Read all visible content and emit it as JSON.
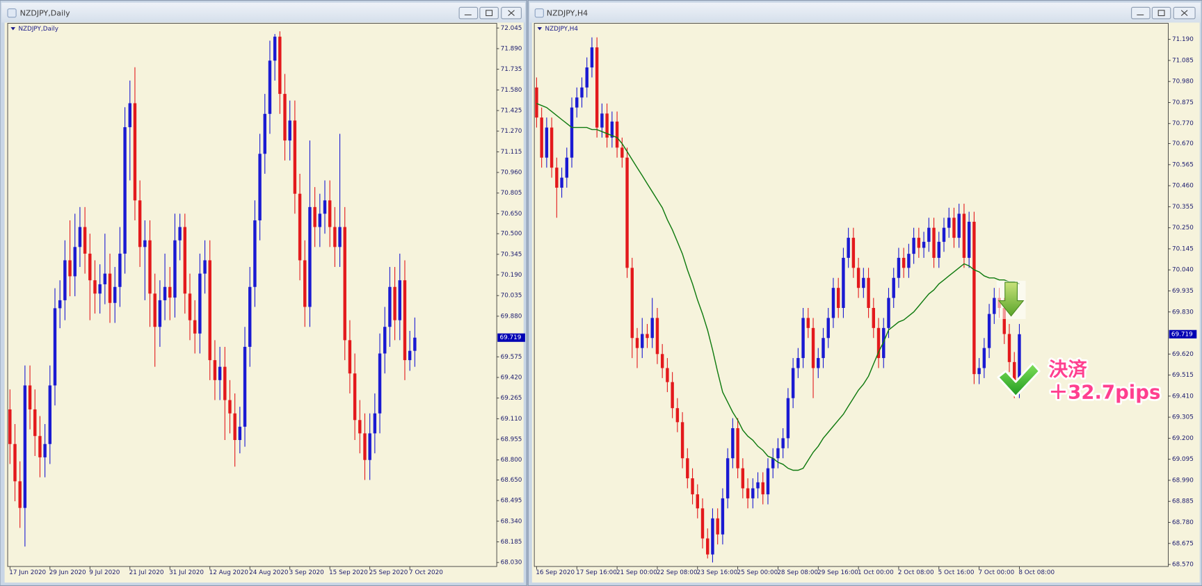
{
  "chart_data": [
    {
      "type": "candlestick",
      "title": "NZDJPY,Daily",
      "up_color": "#1a1ad2",
      "down_color": "#e3191c",
      "categories": [
        "17 Jun 2020",
        null,
        null,
        null,
        null,
        null,
        null,
        null,
        "29 Jun 2020",
        null,
        null,
        null,
        null,
        null,
        null,
        null,
        "9 Jul 2020",
        null,
        null,
        null,
        null,
        null,
        null,
        null,
        "21 Jul 2020",
        null,
        null,
        null,
        null,
        null,
        null,
        null,
        "31 Jul 2020",
        null,
        null,
        null,
        null,
        null,
        null,
        null,
        "12 Aug 2020",
        null,
        null,
        null,
        null,
        null,
        null,
        null,
        "24 Aug 2020",
        null,
        null,
        null,
        null,
        null,
        null,
        null,
        "3 Sep 2020",
        null,
        null,
        null,
        null,
        null,
        null,
        null,
        "15 Sep 2020",
        null,
        null,
        null,
        null,
        null,
        null,
        null,
        "25 Sep 2020",
        null,
        null,
        null,
        null,
        null,
        null,
        null,
        "7 Oct 2020",
        null
      ],
      "open": [
        69.18,
        68.92,
        68.64,
        68.44,
        69.36,
        69.18,
        68.98,
        68.82,
        68.92,
        69.36,
        69.94,
        70.0,
        70.3,
        70.18,
        70.4,
        70.55,
        70.35,
        70.15,
        70.05,
        70.12,
        70.2,
        69.98,
        70.1,
        70.35,
        71.3,
        71.48,
        70.75,
        70.4,
        70.45,
        70.05,
        69.8,
        70.0,
        70.1,
        70.02,
        70.45,
        70.55,
        70.05,
        69.85,
        69.75,
        70.2,
        70.3,
        69.55,
        69.4,
        69.5,
        69.25,
        69.15,
        68.95,
        69.05,
        69.65,
        70.1,
        70.6,
        71.1,
        71.4,
        71.8,
        71.98,
        71.55,
        71.2,
        71.35,
        70.8,
        70.3,
        69.95,
        70.7,
        70.55,
        70.65,
        70.75,
        70.55,
        70.4,
        70.55,
        69.7,
        69.45,
        69.1,
        69.0,
        68.8,
        69.0,
        69.15,
        69.6,
        69.8,
        70.1,
        69.85,
        70.15,
        69.55,
        69.62
      ],
      "high": [
        69.33,
        69.07,
        68.79,
        69.51,
        69.51,
        69.33,
        69.13,
        69.07,
        69.51,
        70.09,
        70.15,
        70.45,
        70.6,
        70.65,
        70.7,
        70.7,
        70.5,
        70.3,
        70.27,
        70.5,
        70.35,
        70.25,
        70.55,
        71.45,
        71.65,
        71.75,
        70.9,
        70.6,
        70.6,
        70.2,
        70.15,
        70.35,
        70.25,
        70.65,
        70.65,
        70.65,
        70.2,
        70.0,
        70.35,
        70.45,
        70.45,
        69.7,
        69.65,
        69.65,
        69.4,
        69.3,
        69.2,
        69.8,
        70.25,
        70.75,
        71.25,
        71.55,
        71.95,
        72.0,
        72.02,
        71.7,
        71.5,
        71.5,
        70.95,
        70.45,
        71.2,
        70.85,
        70.8,
        70.9,
        70.9,
        70.7,
        71.25,
        70.7,
        69.85,
        69.6,
        69.25,
        69.15,
        69.15,
        69.3,
        69.75,
        69.95,
        70.25,
        70.25,
        70.35,
        70.3,
        69.77,
        69.87
      ],
      "low": [
        68.77,
        68.49,
        68.29,
        68.15,
        69.03,
        68.83,
        68.67,
        68.67,
        68.77,
        69.21,
        69.79,
        69.85,
        70.03,
        70.03,
        70.25,
        70.2,
        69.85,
        69.9,
        69.9,
        69.97,
        69.83,
        69.83,
        69.95,
        70.2,
        70.9,
        70.6,
        70.25,
        70.0,
        69.8,
        69.5,
        69.65,
        69.85,
        69.85,
        69.87,
        70.3,
        69.9,
        69.7,
        69.6,
        69.6,
        70.05,
        69.4,
        69.25,
        69.25,
        68.95,
        69.0,
        68.75,
        68.85,
        68.9,
        69.5,
        69.95,
        70.45,
        70.95,
        71.25,
        71.65,
        71.4,
        71.05,
        71.05,
        70.65,
        70.15,
        69.8,
        69.8,
        70.4,
        70.4,
        70.5,
        70.4,
        70.25,
        70.25,
        69.55,
        69.3,
        68.95,
        68.85,
        68.65,
        68.65,
        68.85,
        69.0,
        69.45,
        69.65,
        69.7,
        69.7,
        69.4,
        69.47,
        69.5
      ],
      "close": [
        68.92,
        68.64,
        68.44,
        69.36,
        69.18,
        68.98,
        68.82,
        68.92,
        69.36,
        69.94,
        70.0,
        70.3,
        70.18,
        70.4,
        70.55,
        70.35,
        70.15,
        70.05,
        70.12,
        70.2,
        69.98,
        70.1,
        70.35,
        71.3,
        71.48,
        70.75,
        70.4,
        70.45,
        70.05,
        69.8,
        70.0,
        70.1,
        70.02,
        70.45,
        70.55,
        70.05,
        69.85,
        69.75,
        70.2,
        70.3,
        69.55,
        69.4,
        69.5,
        69.25,
        69.15,
        68.95,
        69.05,
        69.65,
        70.1,
        70.6,
        71.1,
        71.4,
        71.8,
        71.98,
        71.55,
        71.2,
        71.35,
        70.8,
        70.3,
        69.95,
        70.7,
        70.55,
        70.65,
        70.75,
        70.55,
        70.4,
        70.55,
        69.7,
        69.45,
        69.1,
        69.0,
        68.8,
        69.0,
        69.15,
        69.6,
        69.8,
        70.1,
        69.85,
        70.15,
        69.55,
        69.62,
        69.719
      ],
      "ylim": [
        68.0,
        72.08
      ],
      "yticks": [
        72.045,
        {
          "value": 71.89,
          "label": "71.890"
        },
        71.735,
        {
          "value": 71.58,
          "label": "71.580"
        },
        71.425,
        {
          "value": 71.27,
          "label": "71.270"
        },
        71.115,
        {
          "value": 70.96,
          "label": "70.960"
        },
        70.805,
        {
          "value": 70.65,
          "label": "70.650"
        },
        {
          "value": 70.5,
          "label": "70.500"
        },
        70.345,
        {
          "value": 70.19,
          "label": "70.190"
        },
        70.035,
        {
          "value": 69.88,
          "label": "69.880"
        },
        69.575,
        {
          "value": 69.42,
          "label": "69.420"
        },
        69.265,
        {
          "value": 69.11,
          "label": "69.110"
        },
        68.955,
        {
          "value": 68.8,
          "label": "68.800"
        },
        {
          "value": 68.65,
          "label": "68.650"
        },
        68.495,
        {
          "value": 68.34,
          "label": "68.340"
        },
        68.185,
        {
          "value": 68.03,
          "label": "68.030"
        }
      ]
    },
    {
      "type": "candlestick",
      "title": "NZDJPY,H4",
      "up_color": "#1a1ad2",
      "down_color": "#e3191c",
      "categories": [
        "16 Sep 2020",
        null,
        null,
        null,
        null,
        null,
        null,
        null,
        "17 Sep 16:00",
        null,
        null,
        null,
        null,
        null,
        null,
        null,
        "21 Sep 00:00",
        null,
        null,
        null,
        null,
        null,
        null,
        null,
        "22 Sep 08:00",
        null,
        null,
        null,
        null,
        null,
        null,
        null,
        "23 Sep 16:00",
        null,
        null,
        null,
        null,
        null,
        null,
        null,
        "25 Sep 00:00",
        null,
        null,
        null,
        null,
        null,
        null,
        null,
        "28 Sep 08:00",
        null,
        null,
        null,
        null,
        null,
        null,
        null,
        "29 Sep 16:00",
        null,
        null,
        null,
        null,
        null,
        null,
        null,
        "1 Oct 00:00",
        null,
        null,
        null,
        null,
        null,
        null,
        null,
        "2 Oct 08:00",
        null,
        null,
        null,
        null,
        null,
        null,
        null,
        "5 Oct 16:00",
        null,
        null,
        null,
        null,
        null,
        null,
        null,
        "7 Oct 00:00",
        null,
        null,
        null,
        null,
        null,
        null,
        null,
        "8 Oct 08:00"
      ],
      "open": [
        70.95,
        70.8,
        70.6,
        70.75,
        70.55,
        70.45,
        70.5,
        70.6,
        70.85,
        70.9,
        70.95,
        71.05,
        71.15,
        70.75,
        70.82,
        70.7,
        70.78,
        70.65,
        70.6,
        70.05,
        69.7,
        69.65,
        69.72,
        69.7,
        69.8,
        69.62,
        69.55,
        69.48,
        69.35,
        69.28,
        69.1,
        69.0,
        68.92,
        68.85,
        68.7,
        68.62,
        68.8,
        68.72,
        68.9,
        69.1,
        69.25,
        69.05,
        68.95,
        68.9,
        68.95,
        68.98,
        68.92,
        69.05,
        69.1,
        69.15,
        69.2,
        69.4,
        69.55,
        69.6,
        69.8,
        69.75,
        69.55,
        69.6,
        69.7,
        69.8,
        69.95,
        69.85,
        70.1,
        70.2,
        70.05,
        69.95,
        70.0,
        69.85,
        69.75,
        69.6,
        69.75,
        69.9,
        70.0,
        70.1,
        70.05,
        70.12,
        70.2,
        70.15,
        70.18,
        70.25,
        70.1,
        70.18,
        70.25,
        70.3,
        70.2,
        70.32,
        70.1,
        70.28,
        69.52,
        69.55,
        69.65,
        69.82,
        69.9,
        69.85,
        69.72,
        69.58,
        69.45
      ],
      "high": [
        71.0,
        70.85,
        70.8,
        70.8,
        70.6,
        70.55,
        70.65,
        70.9,
        70.95,
        71.0,
        71.1,
        71.2,
        71.2,
        70.87,
        70.87,
        70.83,
        70.83,
        70.7,
        70.65,
        70.1,
        69.75,
        69.8,
        69.77,
        69.9,
        69.85,
        69.67,
        69.6,
        69.53,
        69.4,
        69.33,
        69.15,
        69.05,
        68.97,
        68.9,
        68.75,
        68.85,
        68.85,
        68.95,
        69.15,
        69.3,
        69.3,
        69.1,
        69.0,
        69.0,
        69.03,
        69.03,
        69.1,
        69.15,
        69.2,
        69.25,
        69.45,
        69.6,
        69.65,
        69.85,
        69.85,
        69.8,
        69.65,
        69.75,
        69.85,
        70.0,
        70.0,
        70.15,
        70.25,
        70.25,
        70.1,
        70.05,
        70.05,
        69.9,
        69.8,
        69.8,
        69.95,
        70.05,
        70.15,
        70.15,
        70.17,
        70.25,
        70.25,
        70.23,
        70.3,
        70.3,
        70.23,
        70.3,
        70.35,
        70.35,
        70.37,
        70.37,
        70.33,
        70.33,
        69.6,
        69.7,
        69.87,
        69.95,
        69.95,
        69.9,
        69.77,
        69.63,
        69.77
      ],
      "low": [
        70.75,
        70.55,
        70.55,
        70.5,
        70.3,
        70.4,
        70.45,
        70.55,
        70.8,
        70.85,
        70.9,
        71.0,
        70.7,
        70.7,
        70.65,
        70.65,
        70.6,
        70.55,
        70.0,
        69.6,
        69.55,
        69.6,
        69.65,
        69.65,
        69.57,
        69.5,
        69.43,
        69.3,
        69.23,
        69.05,
        68.95,
        68.87,
        68.8,
        68.65,
        68.6,
        68.58,
        68.67,
        68.67,
        68.85,
        69.05,
        69.0,
        68.9,
        68.85,
        68.85,
        68.9,
        68.87,
        68.87,
        69.0,
        69.05,
        69.1,
        69.15,
        69.35,
        69.5,
        69.55,
        69.7,
        69.4,
        69.5,
        69.55,
        69.65,
        69.75,
        69.8,
        69.8,
        70.05,
        70.0,
        69.9,
        69.9,
        69.8,
        69.7,
        69.55,
        69.55,
        69.7,
        69.85,
        69.95,
        70.0,
        70.0,
        70.07,
        70.1,
        70.1,
        70.13,
        70.05,
        70.05,
        70.13,
        70.2,
        70.15,
        70.15,
        70.05,
        70.05,
        69.47,
        69.47,
        69.5,
        69.6,
        69.77,
        69.8,
        69.67,
        69.53,
        69.4,
        69.4
      ],
      "close": [
        70.8,
        70.6,
        70.75,
        70.55,
        70.45,
        70.5,
        70.6,
        70.85,
        70.9,
        70.95,
        71.05,
        71.15,
        70.75,
        70.82,
        70.7,
        70.78,
        70.65,
        70.6,
        70.05,
        69.7,
        69.65,
        69.72,
        69.7,
        69.8,
        69.62,
        69.55,
        69.48,
        69.35,
        69.28,
        69.1,
        69.0,
        68.92,
        68.85,
        68.7,
        68.62,
        68.8,
        68.72,
        68.9,
        69.1,
        69.25,
        69.05,
        68.95,
        68.9,
        68.95,
        68.98,
        68.92,
        69.05,
        69.1,
        69.15,
        69.2,
        69.4,
        69.55,
        69.6,
        69.8,
        69.75,
        69.55,
        69.6,
        69.7,
        69.8,
        69.95,
        69.85,
        70.1,
        70.2,
        70.05,
        69.95,
        70.0,
        69.85,
        69.75,
        69.6,
        69.75,
        69.9,
        70.0,
        70.1,
        70.05,
        70.12,
        70.2,
        70.15,
        70.18,
        70.25,
        70.1,
        70.18,
        70.25,
        70.3,
        70.2,
        70.32,
        70.1,
        70.28,
        69.52,
        69.55,
        69.65,
        69.82,
        69.9,
        69.85,
        69.72,
        69.58,
        69.45,
        69.719
      ],
      "ma": {
        "color": "#0f7a0f",
        "values": [
          70.87,
          70.86,
          70.85,
          70.83,
          70.81,
          70.79,
          70.77,
          70.75,
          70.75,
          70.75,
          70.75,
          70.74,
          70.74,
          70.73,
          70.72,
          70.71,
          70.7,
          70.67,
          70.63,
          70.59,
          70.55,
          70.51,
          70.47,
          70.43,
          70.39,
          70.35,
          70.29,
          70.24,
          70.18,
          70.12,
          70.04,
          69.97,
          69.89,
          69.82,
          69.74,
          69.64,
          69.53,
          69.43,
          69.38,
          69.33,
          69.29,
          69.24,
          69.21,
          69.19,
          69.16,
          69.14,
          69.11,
          69.1,
          69.08,
          69.07,
          69.05,
          69.04,
          69.04,
          69.05,
          69.09,
          69.13,
          69.16,
          69.2,
          69.23,
          69.26,
          69.29,
          69.32,
          69.36,
          69.4,
          69.44,
          69.47,
          69.51,
          69.57,
          69.63,
          69.68,
          69.74,
          69.76,
          69.78,
          69.79,
          69.81,
          69.83,
          69.86,
          69.89,
          69.92,
          69.94,
          69.97,
          69.99,
          70.01,
          70.03,
          70.05,
          70.07,
          70.06,
          70.04,
          70.03,
          70.01,
          70.0,
          70.0,
          69.99,
          69.99,
          69.98,
          69.98,
          69.97
        ]
      },
      "ylim": [
        68.56,
        71.27
      ],
      "yticks": [
        {
          "value": 71.19,
          "label": "71.190"
        },
        71.085,
        {
          "value": 70.98,
          "label": "70.980"
        },
        70.875,
        {
          "value": 70.77,
          "label": "70.770"
        },
        {
          "value": 70.67,
          "label": "70.670"
        },
        70.565,
        {
          "value": 70.46,
          "label": "70.460"
        },
        70.355,
        {
          "value": 70.25,
          "label": "70.250"
        },
        70.145,
        {
          "value": 70.04,
          "label": "70.040"
        },
        69.935,
        {
          "value": 69.83,
          "label": "69.830"
        },
        {
          "value": 69.62,
          "label": "69.620"
        },
        69.515,
        {
          "value": 69.41,
          "label": "69.410"
        },
        69.305,
        {
          "value": 69.2,
          "label": "69.200"
        },
        69.095,
        {
          "value": 68.99,
          "label": "68.990"
        },
        68.885,
        {
          "value": 68.78,
          "label": "68.780"
        },
        68.675,
        {
          "value": 68.57,
          "label": "68.570"
        }
      ],
      "annotations": [
        "決済",
        "＋32.7pips"
      ]
    }
  ]
}
